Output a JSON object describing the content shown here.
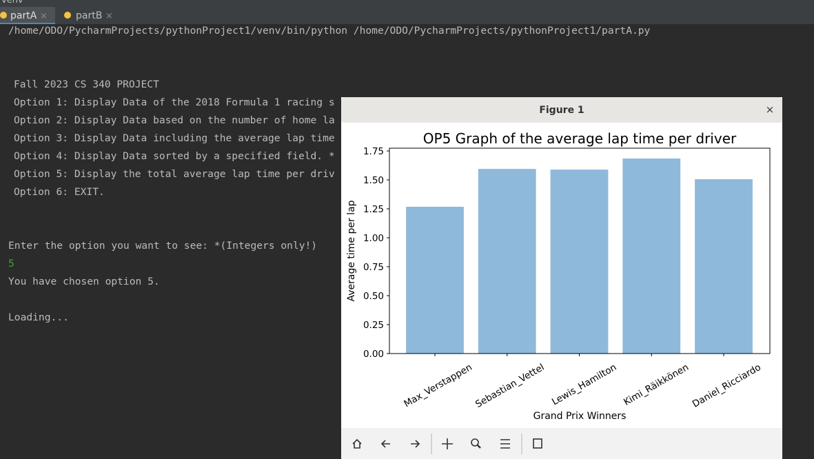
{
  "ide": {
    "project": "venv",
    "tabs": [
      "partA",
      "partB"
    ]
  },
  "console": {
    "lines": [
      "/home/ODO/PycharmProjects/pythonProject1/venv/bin/python /home/ODO/PycharmProjects/pythonProject1/partA.py",
      "Fall 2023 CS 340 PROJECT",
      "Option 1: Display Data of the 2018 Formula 1 racing s",
      "Option 2: Display Data based on the number of home la",
      "Option 3: Display Data including the average lap time",
      "Option 4: Display Data sorted by a specified field. *",
      "Option 5: Display the total average lap time per driv",
      "Option 6: EXIT.",
      "Enter the option you want to see: *(Integers only!)",
      "5",
      "You have chosen option 5.",
      "Loading..."
    ]
  },
  "window": {
    "title": "Figure 1"
  },
  "chart_data": {
    "type": "bar",
    "title": "OP5 Graph of the average lap time per driver",
    "x_label": "Grand Prix Winners",
    "y_label": "Average time per lap",
    "categories": [
      "Max_Verstappen",
      "Sebastian_Vettel",
      "Lewis_Hamilton",
      "Kimi_Räikkönen",
      "Daniel_Ricciardo"
    ],
    "values": [
      1.268,
      1.595,
      1.589,
      1.685,
      1.506
    ],
    "color": "#8fb9db",
    "ylim": [
      0,
      1.774
    ],
    "yticks": [
      {
        "value": 0,
        "label": "0.00"
      },
      {
        "value": 0.25,
        "label": "0.25"
      },
      {
        "value": 0.5,
        "label": "0.50"
      },
      {
        "value": 0.75,
        "label": "0.75"
      },
      {
        "value": 1,
        "label": "1.00"
      },
      {
        "value": 1.25,
        "label": "1.25"
      },
      {
        "value": 1.5,
        "label": "1.50"
      },
      {
        "value": 1.75,
        "label": "1.75"
      }
    ],
    "grid": false
  }
}
